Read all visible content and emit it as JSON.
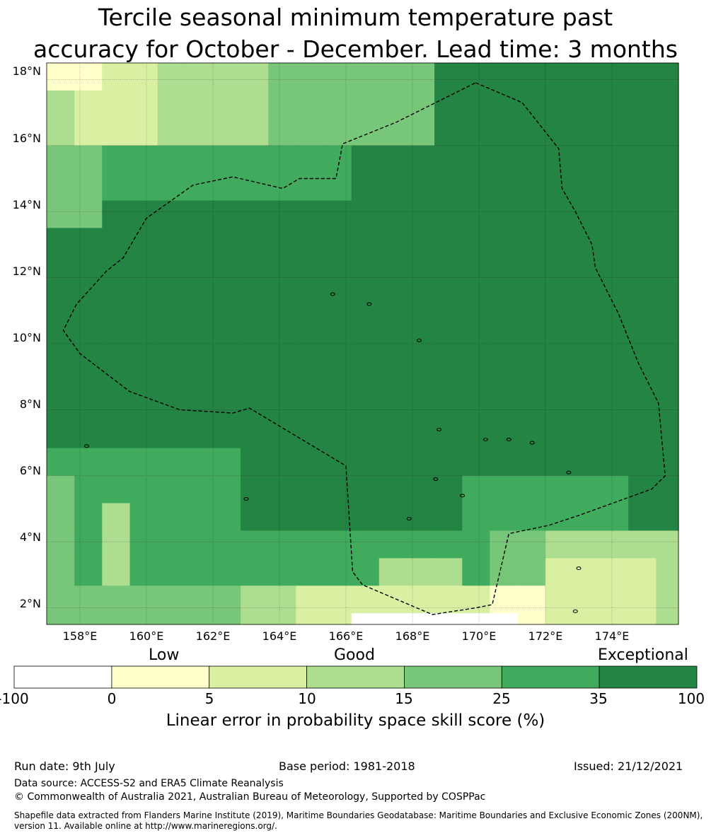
{
  "title_line1": "Tercile seasonal minimum temperature past",
  "title_line2": "accuracy for October - December. Lead time: 3 months",
  "map": {
    "lon_ticks": [
      "158°E",
      "160°E",
      "162°E",
      "164°E",
      "166°E",
      "168°E",
      "170°E",
      "172°E",
      "174°E"
    ],
    "lat_ticks": [
      "18°N",
      "16°N",
      "14°N",
      "12°N",
      "10°N",
      "8°N",
      "6°N",
      "4°N",
      "2°N"
    ],
    "lon_range": [
      157.0,
      176.0
    ],
    "lat_range": [
      1.5,
      18.5
    ],
    "grid_cell_deg": 0.833,
    "boundary_lonlat": [
      [
        169.9,
        17.9
      ],
      [
        171.3,
        17.3
      ],
      [
        172.4,
        15.9
      ],
      [
        172.5,
        14.7
      ],
      [
        172.9,
        14.0
      ],
      [
        173.4,
        13.0
      ],
      [
        173.5,
        12.3
      ],
      [
        174.2,
        10.9
      ],
      [
        174.8,
        9.4
      ],
      [
        175.4,
        8.2
      ],
      [
        175.6,
        6.0
      ],
      [
        175.2,
        5.6
      ],
      [
        173.0,
        4.8
      ],
      [
        172.1,
        4.5
      ],
      [
        170.9,
        4.25
      ],
      [
        170.4,
        2.1
      ],
      [
        169.9,
        2.0
      ],
      [
        168.6,
        1.8
      ],
      [
        166.5,
        2.7
      ],
      [
        166.2,
        3.1
      ],
      [
        166.0,
        6.3
      ],
      [
        163.1,
        8.05
      ],
      [
        162.6,
        7.9
      ],
      [
        161.0,
        8.0
      ],
      [
        159.5,
        8.55
      ],
      [
        158.0,
        9.7
      ],
      [
        157.5,
        10.4
      ],
      [
        157.9,
        11.2
      ],
      [
        158.8,
        12.2
      ],
      [
        159.3,
        12.6
      ],
      [
        160.0,
        13.8
      ],
      [
        161.4,
        14.8
      ],
      [
        162.6,
        15.05
      ],
      [
        164.1,
        14.7
      ],
      [
        164.6,
        15.0
      ],
      [
        165.7,
        15.0
      ],
      [
        165.9,
        16.05
      ],
      [
        167.5,
        16.7
      ]
    ],
    "colors": [
      "#ffffff",
      "#ffffcc",
      "#d9f0a3",
      "#addd8e",
      "#78c679",
      "#41ab5d",
      "#238443"
    ]
  },
  "legend": {
    "categories": [
      "Low",
      "Good",
      "Exceptional"
    ],
    "ticks": [
      "-100",
      "0",
      "5",
      "10",
      "15",
      "25",
      "35",
      "100"
    ],
    "colors": [
      "#ffffff",
      "#ffffcc",
      "#d9f0a3",
      "#addd8e",
      "#78c679",
      "#41ab5d",
      "#238443"
    ],
    "label": "Linear error in probability space skill score (%)"
  },
  "footer": {
    "run_date": "Run date: 9th July",
    "base_period": "Base period: 1981-2018",
    "issued": "Issued: 21/12/2021",
    "data_source": "Data source: ACCESS-S2 and ERA5 Climate Reanalysis",
    "copyright": "© Commonwealth of Australia 2021, Australian Bureau of Meteorology, Supported by COSPPac",
    "shapefile_1": "Shapefile data extracted from Flanders Marine Institute (2019), Maritime Boundaries Geodatabase: Maritime Boundaries and Exclusive Economic Zones (200NM),",
    "shapefile_2": "version 11. Available online at http://www.marineregions.org/."
  }
}
